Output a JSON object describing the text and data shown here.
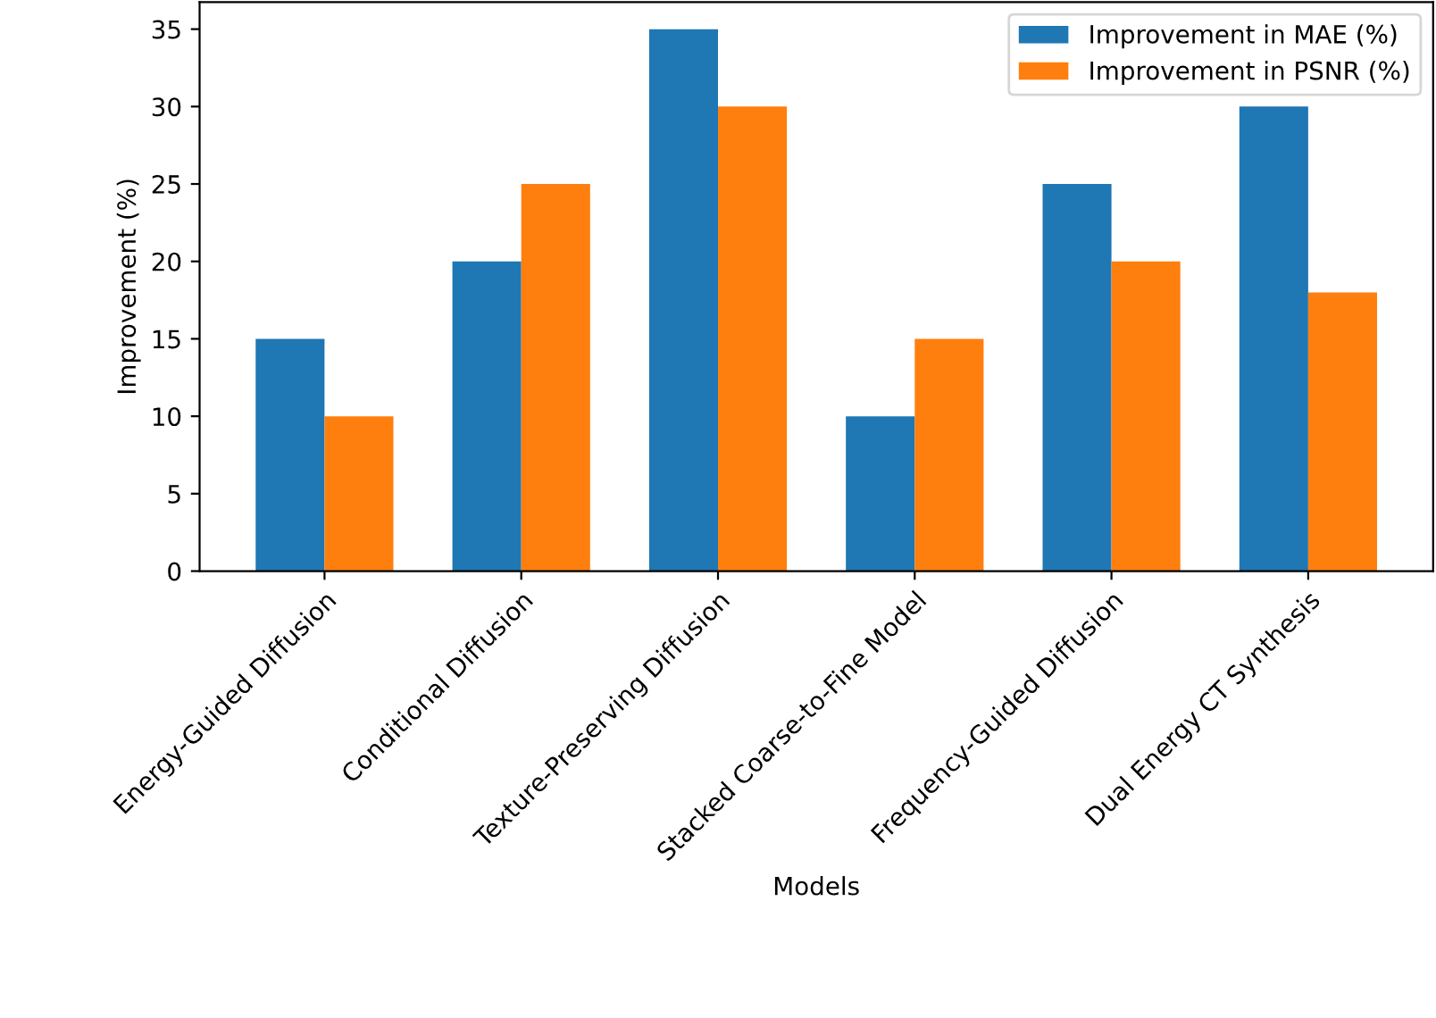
{
  "chart_data": {
    "type": "bar",
    "categories": [
      "Energy-Guided Diffusion",
      "Conditional Diffusion",
      "Texture-Preserving Diffusion",
      "Stacked Coarse-to-Fine Model",
      "Frequency-Guided Diffusion",
      "Dual Energy CT Synthesis"
    ],
    "series": [
      {
        "name": "Improvement in MAE (%)",
        "color": "#1f77b4",
        "values": [
          15,
          20,
          35,
          10,
          25,
          30
        ]
      },
      {
        "name": "Improvement in PSNR (%)",
        "color": "#ff7f0e",
        "values": [
          10,
          25,
          30,
          15,
          20,
          18
        ]
      }
    ],
    "xlabel": "Models",
    "ylabel": "Improvement (%)",
    "ylim": [
      0,
      36.75
    ],
    "yticks": [
      0,
      5,
      10,
      15,
      20,
      25,
      30,
      35
    ],
    "legend": "top right",
    "grid": false
  }
}
